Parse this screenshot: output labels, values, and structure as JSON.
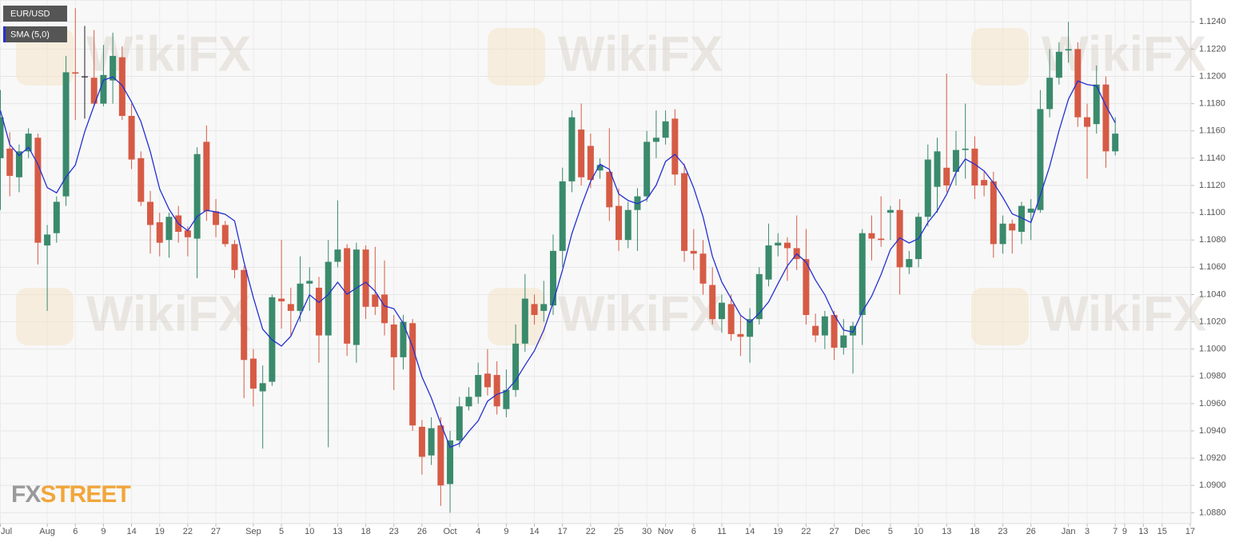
{
  "chart_data": {
    "type": "candlestick",
    "title": "EUR/USD",
    "watermark": "WikiFX",
    "logo_fx": "FX",
    "logo_street": "STREET",
    "up_color": "#3a8a6c",
    "down_color": "#d65b45",
    "grid": true,
    "ylim": [
      1.0872,
      1.1256
    ],
    "yticks": [
      {
        "value": 1.088,
        "label": "1.0880"
      },
      {
        "value": 1.09,
        "label": "1.0900"
      },
      {
        "value": 1.092,
        "label": "1.0920"
      },
      {
        "value": 1.094,
        "label": "1.0940"
      },
      {
        "value": 1.096,
        "label": "1.0960"
      },
      {
        "value": 1.098,
        "label": "1.0980"
      },
      {
        "value": 1.1,
        "label": "1.1000"
      },
      {
        "value": 1.102,
        "label": "1.1020"
      },
      {
        "value": 1.104,
        "label": "1.1040"
      },
      {
        "value": 1.106,
        "label": "1.1060"
      },
      {
        "value": 1.108,
        "label": "1.1080"
      },
      {
        "value": 1.11,
        "label": "1.1100"
      },
      {
        "value": 1.112,
        "label": "1.1120"
      },
      {
        "value": 1.114,
        "label": "1.1140"
      },
      {
        "value": 1.116,
        "label": "1.1160"
      },
      {
        "value": 1.118,
        "label": "1.1180"
      },
      {
        "value": 1.12,
        "label": "1.1200"
      },
      {
        "value": 1.122,
        "label": "1.1220"
      },
      {
        "value": 1.124,
        "label": "1.1240"
      }
    ],
    "categories": [
      "Jul",
      null,
      null,
      null,
      null,
      "Aug",
      null,
      null,
      "6",
      null,
      null,
      "9",
      null,
      null,
      "14",
      null,
      null,
      "19",
      null,
      null,
      "22",
      null,
      null,
      "27",
      null,
      null,
      null,
      "Sep",
      null,
      null,
      "5",
      null,
      null,
      "10",
      null,
      null,
      "13",
      null,
      null,
      "18",
      null,
      null,
      "23",
      null,
      null,
      "26",
      null,
      null,
      "Oct",
      null,
      null,
      "4",
      null,
      null,
      "9",
      null,
      null,
      "14",
      null,
      null,
      "17",
      null,
      null,
      "22",
      null,
      null,
      "25",
      null,
      null,
      "30",
      null,
      "Nov",
      null,
      null,
      "6",
      null,
      null,
      "11",
      null,
      null,
      "14",
      null,
      null,
      "19",
      null,
      null,
      "22",
      null,
      null,
      "27",
      null,
      null,
      "Dec",
      null,
      null,
      "5",
      null,
      null,
      "10",
      null,
      null,
      "13",
      null,
      null,
      "18",
      null,
      null,
      "23",
      null,
      null,
      "26",
      null,
      null,
      null,
      "Jan",
      null,
      "3",
      null,
      null,
      "7",
      "9",
      null,
      "13",
      null,
      "15",
      null,
      null,
      "17"
    ],
    "open": [
      1.114,
      1.1147,
      1.1126,
      1.1145,
      1.1155,
      1.1076,
      1.1085,
      1.1112,
      1.1203,
      1.12,
      1.1199,
      1.118,
      1.1197,
      1.1214,
      1.1171,
      1.114,
      1.1108,
      1.1093,
      1.108,
      1.1098,
      1.1087,
      1.1081,
      1.1152,
      1.1101,
      1.1091,
      1.1077,
      1.1058,
      1.0993,
      1.0969,
      1.0976,
      1.1037,
      1.1033,
      1.1028,
      1.1048,
      1.1045,
      1.101,
      1.1064,
      1.1074,
      1.1003,
      1.1073,
      1.104,
      1.104,
      1.1018,
      1.0994,
      1.1019,
      1.0943,
      1.0922,
      1.0944,
      1.0901,
      1.0933,
      1.0958,
      1.0965,
      1.0982,
      1.0981,
      1.0956,
      1.097,
      1.1004,
      1.1033,
      1.1028,
      1.1032,
      1.1072,
      1.1123,
      1.1161,
      1.1149,
      1.1131,
      1.113,
      1.1105,
      1.108,
      1.1102,
      1.1112,
      1.1152,
      1.1155,
      1.1169,
      1.1129,
      1.1072,
      1.107,
      1.1047,
      1.1022,
      1.1033,
      1.1011,
      1.1009,
      1.1022,
      1.1051,
      1.1076,
      1.1078,
      1.1074,
      1.1066,
      1.1017,
      1.101,
      1.1025,
      1.1001,
      1.101,
      1.1025,
      1.1085,
      1.1081,
      1.11,
      1.1102,
      1.106,
      1.1066,
      1.1097,
      1.1119,
      1.1133,
      1.113,
      1.1146,
      1.1147,
      1.1124,
      1.1123,
      1.1077,
      1.1092,
      1.1086,
      1.11,
      1.1102,
      1.1176,
      1.1199,
      1.1219,
      1.122,
      1.117,
      1.1165,
      1.1194,
      1.1145,
      null,
      null,
      null,
      null,
      null,
      null,
      null,
      null
    ],
    "high": [
      1.119,
      1.1159,
      1.115,
      1.1162,
      1.1158,
      1.1091,
      1.1112,
      1.1215,
      1.125,
      1.1237,
      1.1234,
      1.1223,
      1.1232,
      1.1222,
      1.118,
      1.1145,
      1.1116,
      1.11,
      1.11,
      1.1105,
      1.109,
      1.1148,
      1.1164,
      1.111,
      1.1094,
      1.108,
      1.1061,
      1.1,
      1.0988,
      1.104,
      1.108,
      1.1045,
      1.1068,
      1.106,
      1.1053,
      1.108,
      1.1109,
      1.1077,
      1.1078,
      1.1076,
      1.1075,
      1.1065,
      1.1025,
      1.1025,
      1.1022,
      1.0948,
      1.095,
      1.095,
      1.094,
      1.0965,
      1.0972,
      1.099,
      1.1,
      1.0991,
      1.0985,
      1.1018,
      1.1055,
      1.104,
      1.105,
      1.1084,
      1.1133,
      1.1175,
      1.118,
      1.1158,
      1.114,
      1.1162,
      1.1118,
      1.1108,
      1.1118,
      1.116,
      1.1175,
      1.1175,
      1.1176,
      1.1136,
      1.1088,
      1.108,
      1.106,
      1.104,
      1.104,
      1.1025,
      1.103,
      1.106,
      1.1092,
      1.1085,
      1.1082,
      1.1098,
      1.1088,
      1.1026,
      1.1028,
      1.1028,
      1.1022,
      1.102,
      1.1088,
      1.1098,
      1.1112,
      1.1105,
      1.111,
      1.1072,
      1.11,
      1.115,
      1.1155,
      1.1202,
      1.116,
      1.118,
      1.1156,
      1.113,
      1.113,
      1.1098,
      1.1095,
      1.1108,
      1.111,
      1.119,
      1.122,
      1.1225,
      1.124,
      1.1225,
      1.118,
      1.1208,
      1.12,
      1.117,
      null,
      null,
      null,
      null,
      null,
      null,
      null,
      null
    ],
    "low": [
      1.1102,
      1.1112,
      1.1115,
      1.114,
      1.1062,
      1.1028,
      1.1078,
      1.1105,
      1.1168,
      1.1169,
      1.1178,
      1.1178,
      1.118,
      1.1168,
      1.1132,
      1.1105,
      1.107,
      1.1068,
      1.1067,
      1.1078,
      1.1068,
      1.1052,
      1.1094,
      1.1082,
      1.1075,
      1.1052,
      1.0964,
      1.0958,
      1.0927,
      1.0973,
      1.1015,
      1.101,
      1.102,
      1.1028,
      1.099,
      1.0928,
      1.106,
      1.0995,
      1.099,
      1.1022,
      1.1025,
      1.101,
      1.097,
      1.0985,
      1.094,
      1.0908,
      1.0915,
      1.0885,
      1.088,
      1.0928,
      1.0955,
      1.096,
      1.0966,
      1.0952,
      1.095,
      1.0965,
      1.0998,
      1.1018,
      1.102,
      1.1025,
      1.106,
      1.1115,
      1.112,
      1.1118,
      1.1125,
      1.1094,
      1.1072,
      1.1074,
      1.1072,
      1.1108,
      1.114,
      1.115,
      1.112,
      1.1064,
      1.1058,
      1.104,
      1.1018,
      1.1012,
      1.1006,
      1.0995,
      1.099,
      1.1018,
      1.1046,
      1.1068,
      1.105,
      1.1058,
      1.1018,
      1.1005,
      1.1,
      1.0992,
      1.0996,
      1.0982,
      1.1003,
      1.1065,
      1.1075,
      1.108,
      1.104,
      1.1055,
      1.106,
      1.109,
      1.11,
      1.1115,
      1.112,
      1.1125,
      1.111,
      1.1112,
      1.1067,
      1.107,
      1.107,
      1.1077,
      1.108,
      1.11,
      1.117,
      1.1194,
      1.121,
      1.1163,
      1.1125,
      1.1158,
      1.1133,
      1.1142,
      null,
      null,
      null,
      null,
      null,
      null,
      null,
      null
    ],
    "close": [
      1.117,
      1.1127,
      1.1145,
      1.1158,
      1.1078,
      1.1084,
      1.1108,
      1.1203,
      1.1202,
      1.12,
      1.118,
      1.1201,
      1.1215,
      1.1171,
      1.1139,
      1.1108,
      1.1091,
      1.1078,
      1.1097,
      1.1086,
      1.1082,
      1.1143,
      1.1101,
      1.1091,
      1.1077,
      1.1058,
      1.0992,
      1.0971,
      1.0975,
      1.1038,
      1.1035,
      1.1028,
      1.1048,
      1.105,
      1.101,
      1.1064,
      1.1073,
      1.1004,
      1.1073,
      1.1031,
      1.1031,
      1.1019,
      1.0994,
      1.102,
      1.0944,
      1.0921,
      1.0942,
      1.09,
      1.0933,
      1.0958,
      1.0965,
      1.0981,
      1.0972,
      1.0958,
      1.097,
      1.1004,
      1.1037,
      1.1025,
      1.1033,
      1.1072,
      1.1123,
      1.117,
      1.1126,
      1.1124,
      1.1135,
      1.1104,
      1.108,
      1.1102,
      1.1112,
      1.1152,
      1.1155,
      1.1167,
      1.1128,
      1.1072,
      1.107,
      1.1048,
      1.1022,
      1.1034,
      1.1011,
      1.1009,
      1.1022,
      1.1055,
      1.1076,
      1.1078,
      1.1074,
      1.1066,
      1.1025,
      1.101,
      1.1024,
      1.1001,
      1.101,
      1.1017,
      1.1085,
      1.1081,
      1.108,
      1.1102,
      1.106,
      1.1066,
      1.1097,
      1.1139,
      1.1145,
      1.112,
      1.1146,
      1.1147,
      1.112,
      1.112,
      1.1077,
      1.1092,
      1.1087,
      1.1105,
      1.1103,
      1.1176,
      1.1199,
      1.1218,
      1.122,
      1.117,
      1.1163,
      1.1194,
      1.1145,
      1.1158,
      null,
      null,
      null,
      null,
      null,
      null,
      null,
      null
    ],
    "overlays": [
      {
        "name": "SMA (5,0)",
        "color": "#2430d1",
        "values": [
          1.1175,
          1.115,
          1.1142,
          1.1148,
          1.11356,
          1.11184,
          1.11146,
          1.11262,
          1.1135,
          1.11594,
          1.11786,
          1.11972,
          1.11996,
          1.11934,
          1.11812,
          1.11668,
          1.11448,
          1.11174,
          1.11026,
          1.1092,
          1.10868,
          1.10972,
          1.11018,
          1.11006,
          1.10988,
          1.1094,
          1.10638,
          1.10378,
          1.10146,
          1.10068,
          1.10022,
          1.10094,
          1.10248,
          1.10398,
          1.10342,
          1.104,
          1.1049,
          1.10402,
          1.10448,
          1.1049,
          1.10424,
          1.10316,
          1.10296,
          1.1019,
          1.10016,
          1.09796,
          1.09642,
          1.09454,
          1.0928,
          1.09308,
          1.09396,
          1.09474,
          1.09618,
          1.09668,
          1.09692,
          1.0977,
          1.09882,
          1.09988,
          1.10138,
          1.10342,
          1.1058,
          1.10846,
          1.11048,
          1.1123,
          1.11356,
          1.11318,
          1.11138,
          1.1109,
          1.11066,
          1.111,
          1.11202,
          1.11376,
          1.11428,
          1.11348,
          1.11184,
          1.1097,
          1.1068,
          1.10492,
          1.1037,
          1.10248,
          1.10196,
          1.10262,
          1.10346,
          1.1048,
          1.1061,
          1.10698,
          1.10638,
          1.10506,
          1.10398,
          1.10252,
          1.1014,
          1.10124,
          1.10274,
          1.10388,
          1.10546,
          1.1073,
          1.10816,
          1.10778,
          1.1081,
          1.10928,
          1.11014,
          1.11134,
          1.11294,
          1.11394,
          1.11356,
          1.11306,
          1.1122,
          1.11112,
          1.10992,
          1.10962,
          1.10928,
          1.11126,
          1.1134,
          1.11602,
          1.11832,
          1.11966,
          1.1194,
          1.1193,
          1.11784,
          1.1166,
          null,
          null,
          null,
          null,
          null,
          null,
          null,
          null
        ]
      }
    ]
  }
}
